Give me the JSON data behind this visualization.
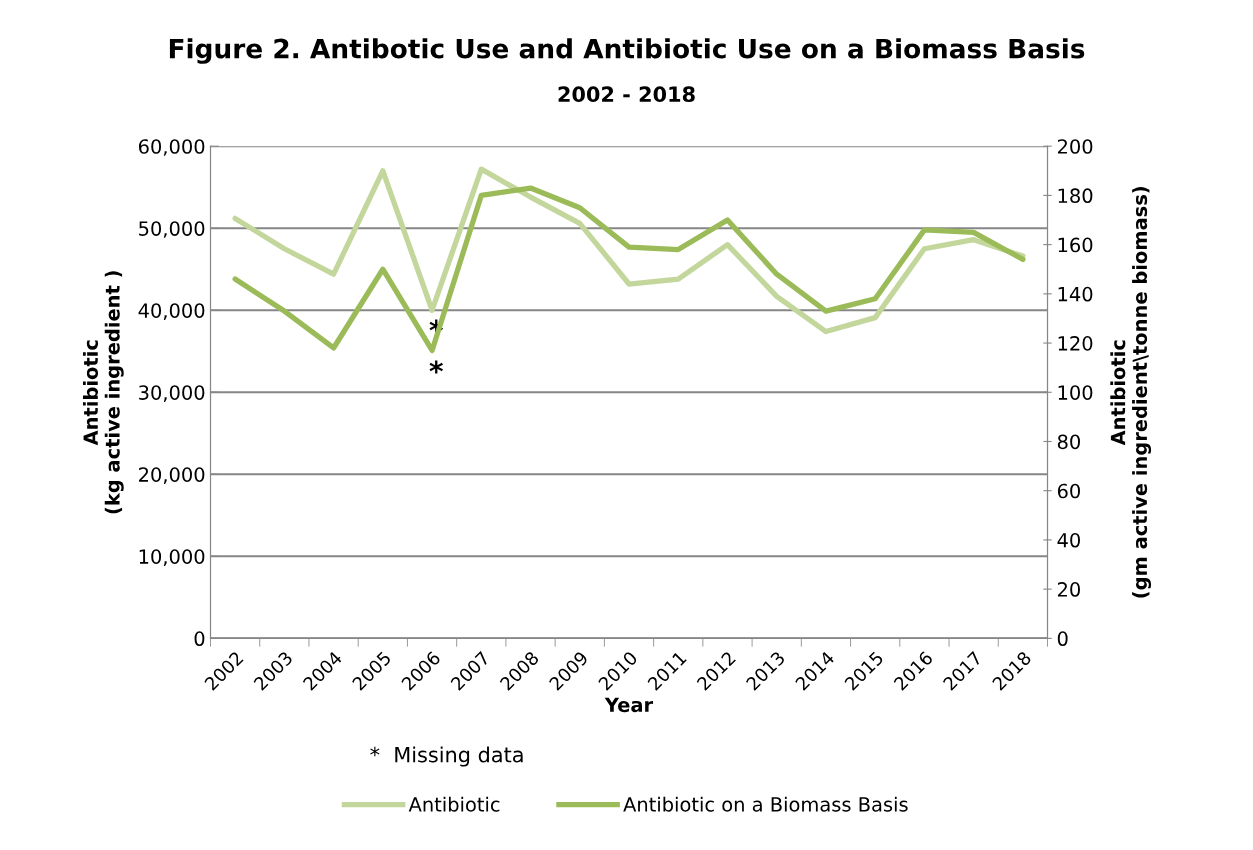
{
  "chart_data": {
    "type": "line",
    "title": "Figure 2. Antibotic Use and Antibiotic Use on a Biomass Basis",
    "subtitle": "2002 - 2018",
    "xlabel": "Year",
    "ylabel": "Antibiotic\n(kg active ingredient )",
    "y2label": "Antibiotic\n(gm active ingredient\\tonne biomass)",
    "categories": [
      "2002",
      "2003",
      "2004",
      "2005",
      "2006",
      "2007",
      "2008",
      "2009",
      "2010",
      "2011",
      "2012",
      "2013",
      "2014",
      "2015",
      "2016",
      "2017",
      "2018"
    ],
    "series": [
      {
        "name": "Antibiotic",
        "color": "#c3d69b",
        "values": [
          51200,
          47500,
          44400,
          57000,
          40000,
          57200,
          53800,
          50600,
          43200,
          43800,
          48000,
          41700,
          37400,
          39100,
          47500,
          48600,
          46600
        ]
      },
      {
        "name": "Antibiotic on a Biomass Basis",
        "color": "#9bbb59",
        "axis": "y2",
        "values": [
          146,
          133,
          118,
          150,
          117,
          180,
          183,
          175,
          159,
          158,
          170,
          148,
          133,
          138,
          166,
          165,
          154
        ]
      }
    ],
    "ylim": [
      0,
      60000
    ],
    "yticks": [
      {
        "value": 0,
        "label": "0"
      },
      {
        "value": 10000,
        "label": "10,000"
      },
      {
        "value": 20000,
        "label": "20,000"
      },
      {
        "value": 30000,
        "label": "30,000"
      },
      {
        "value": 40000,
        "label": "40,000"
      },
      {
        "value": 50000,
        "label": "50,000"
      },
      {
        "value": 60000,
        "label": "60,000"
      }
    ],
    "y2lim": [
      0,
      200
    ],
    "y2ticks": [
      0,
      20,
      40,
      60,
      80,
      100,
      120,
      140,
      160,
      180,
      200
    ],
    "annotations": [
      {
        "text": "*",
        "x": "2006",
        "y": 40000
      },
      {
        "text": "*",
        "x": "2006",
        "y": 35000
      },
      "*  Missing data"
    ],
    "grid": "y",
    "legend": "bottom",
    "marker": "none",
    "line_style": "solid"
  }
}
